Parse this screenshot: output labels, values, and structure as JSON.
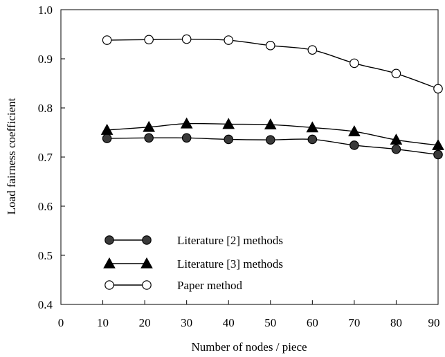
{
  "chart_data": {
    "type": "line",
    "xlabel": "Number of nodes / piece",
    "ylabel": "Load fairness coefficient",
    "xlim": [
      0,
      90
    ],
    "ylim": [
      0.4,
      1.0
    ],
    "x_ticks": [
      "0",
      "10",
      "20",
      "30",
      "40",
      "50",
      "60",
      "70",
      "80",
      "90"
    ],
    "y_ticks": [
      "0.4",
      "0.5",
      "0.6",
      "0.7",
      "0.8",
      "0.9",
      "1.0"
    ],
    "grid": false,
    "legend_position": "bottom-left",
    "series": [
      {
        "name": "Literature [2] methods",
        "marker": "filled-circle",
        "color": "#000000",
        "fill": "#3a3a3a",
        "x": [
          11,
          21,
          30,
          40,
          50,
          60,
          70,
          80,
          90
        ],
        "values": [
          0.738,
          0.739,
          0.739,
          0.736,
          0.735,
          0.736,
          0.724,
          0.716,
          0.705
        ]
      },
      {
        "name": "Literature [3] methods",
        "marker": "filled-triangle",
        "color": "#000000",
        "fill": "#000000",
        "x": [
          11,
          21,
          30,
          40,
          50,
          60,
          70,
          80,
          90
        ],
        "values": [
          0.755,
          0.761,
          0.768,
          0.767,
          0.766,
          0.76,
          0.752,
          0.735,
          0.724
        ]
      },
      {
        "name": "Paper method",
        "marker": "open-circle",
        "color": "#000000",
        "fill": "#ffffff",
        "x": [
          11,
          21,
          30,
          40,
          50,
          60,
          70,
          80,
          90
        ],
        "values": [
          0.938,
          0.939,
          0.94,
          0.938,
          0.927,
          0.918,
          0.891,
          0.87,
          0.839
        ]
      }
    ]
  }
}
